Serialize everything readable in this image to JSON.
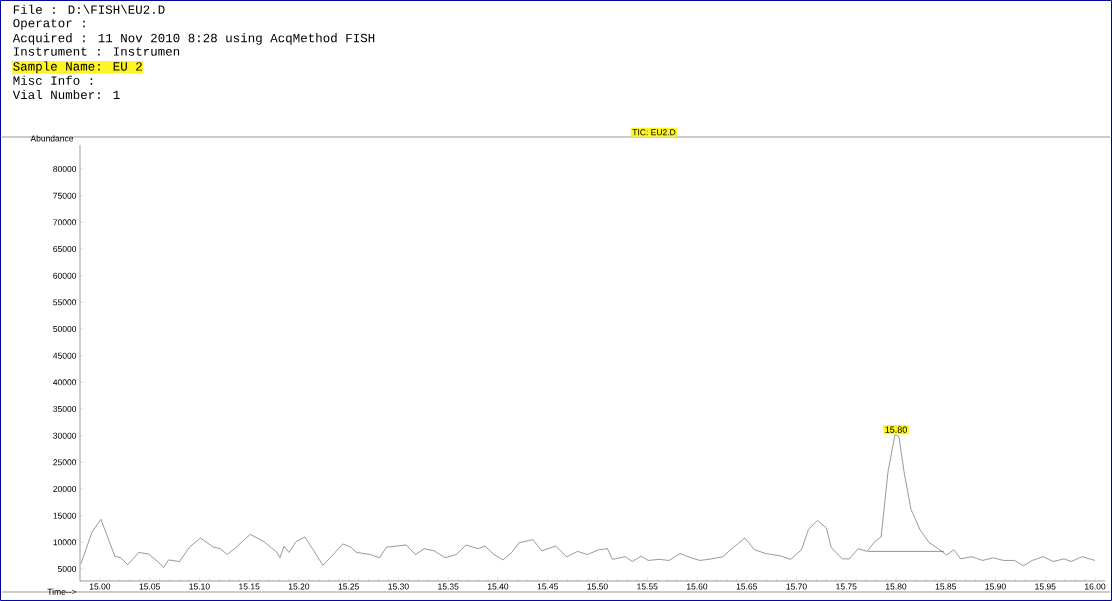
{
  "chart_data": {
    "type": "line",
    "title": "TIC: EU2.D",
    "xlabel": "Time-->",
    "ylabel": "Abundance",
    "annotations": [
      "File : D:\\FISH\\EU2.D",
      "Operator :",
      "Acquired : 11 Nov 2010 8:28 using AcqMethod FISH",
      "Instrument : Instrumen",
      "Sample Name: EU 2",
      "Misc Info :",
      "Vial Number: 1",
      {
        "text": "15.80",
        "x": 15.8,
        "y": 30200
      }
    ],
    "xlim": [
      14.98,
      16.01
    ],
    "ylim": [
      2750,
      84500
    ],
    "xticks": [
      {
        "value": 15.0,
        "label": "15.00"
      },
      {
        "value": 15.05,
        "label": "15.05"
      },
      {
        "value": 15.1,
        "label": "15.10"
      },
      {
        "value": 15.15,
        "label": "15.15"
      },
      {
        "value": 15.2,
        "label": "15.20"
      },
      {
        "value": 15.25,
        "label": "15.25"
      },
      {
        "value": 15.3,
        "label": "15.30"
      },
      {
        "value": 15.35,
        "label": "15.35"
      },
      {
        "value": 15.4,
        "label": "15.40"
      },
      {
        "value": 15.45,
        "label": "15.45"
      },
      {
        "value": 15.5,
        "label": "15.50"
      },
      {
        "value": 15.55,
        "label": "15.55"
      },
      {
        "value": 15.6,
        "label": "15.60"
      },
      {
        "value": 15.65,
        "label": "15.65"
      },
      {
        "value": 15.7,
        "label": "15.70"
      },
      {
        "value": 15.75,
        "label": "15.75"
      },
      {
        "value": 15.8,
        "label": "15.80"
      },
      {
        "value": 15.85,
        "label": "15.85"
      },
      {
        "value": 15.9,
        "label": "15.90"
      },
      {
        "value": 15.95,
        "label": "15.95"
      },
      {
        "value": 16.0,
        "label": "16.00"
      }
    ],
    "yticks": [
      5000,
      10000,
      15000,
      20000,
      25000,
      30000,
      35000,
      40000,
      45000,
      50000,
      55000,
      60000,
      65000,
      70000,
      75000,
      80000
    ],
    "series": [
      {
        "color": "#555555",
        "x": [
          14.981,
          14.992,
          15.001,
          15.015,
          15.021,
          15.028,
          15.039,
          15.049,
          15.058,
          15.064,
          15.069,
          15.08,
          15.09,
          15.101,
          15.114,
          15.121,
          15.128,
          15.137,
          15.151,
          15.165,
          15.178,
          15.181,
          15.185,
          15.19,
          15.197,
          15.206,
          15.215,
          15.224,
          15.233,
          15.244,
          15.252,
          15.258,
          15.272,
          15.281,
          15.288,
          15.308,
          15.317,
          15.326,
          15.336,
          15.347,
          15.358,
          15.368,
          15.38,
          15.387,
          15.396,
          15.405,
          15.414,
          15.421,
          15.435,
          15.444,
          15.458,
          15.469,
          15.48,
          15.49,
          15.501,
          15.51,
          15.515,
          15.528,
          15.535,
          15.544,
          15.551,
          15.562,
          15.572,
          15.583,
          15.594,
          15.603,
          15.615,
          15.626,
          15.635,
          15.648,
          15.658,
          15.669,
          15.683,
          15.694,
          15.705,
          15.712,
          15.721,
          15.73,
          15.735,
          15.746,
          15.753,
          15.762,
          15.771,
          15.778,
          15.785,
          15.792,
          15.799,
          15.803,
          15.808,
          15.815,
          15.824,
          15.833,
          15.844,
          15.851,
          15.858,
          15.865,
          15.876,
          15.887,
          15.898,
          15.908,
          15.919,
          15.928,
          15.937,
          15.948,
          15.958,
          15.969,
          15.976,
          15.987,
          16.0
        ],
        "values": [
          6000,
          11900,
          14300,
          7400,
          7100,
          5800,
          8100,
          7800,
          6400,
          5300,
          6700,
          6400,
          9100,
          10800,
          9100,
          8800,
          7700,
          9100,
          11500,
          10100,
          8100,
          7100,
          9300,
          8100,
          10100,
          11000,
          8400,
          5700,
          7400,
          9700,
          9100,
          8100,
          7700,
          7100,
          9100,
          9500,
          7700,
          8800,
          8400,
          7100,
          7700,
          9500,
          8800,
          9300,
          7700,
          6700,
          8100,
          9900,
          10500,
          8400,
          9300,
          7300,
          8300,
          7700,
          8600,
          8800,
          6800,
          7300,
          6400,
          7400,
          6600,
          6800,
          6600,
          7900,
          7100,
          6600,
          6900,
          7300,
          8800,
          10800,
          8600,
          7900,
          7500,
          6800,
          8600,
          12400,
          14100,
          12700,
          9000,
          6900,
          6900,
          8800,
          8300,
          10000,
          11000,
          23300,
          30200,
          29800,
          23300,
          16200,
          12400,
          10000,
          8600,
          7600,
          8600,
          6900,
          7300,
          6600,
          7100,
          6600,
          6600,
          5600,
          6600,
          7300,
          6400,
          6900,
          6400,
          7300,
          6600
        ]
      },
      {
        "color": "#444444",
        "x": [
          15.772,
          15.848
        ],
        "values": [
          8300,
          8300
        ]
      }
    ]
  }
}
